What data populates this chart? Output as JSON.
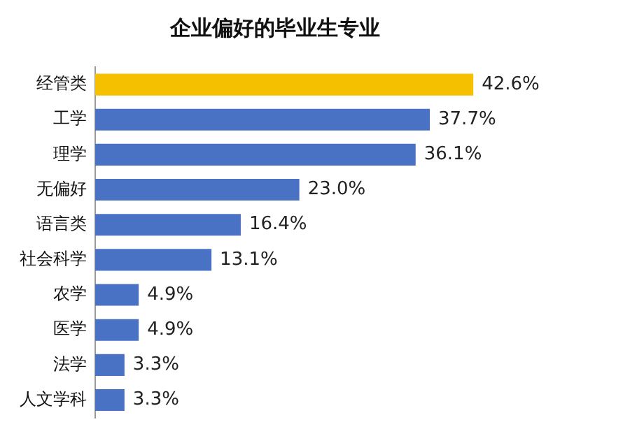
{
  "chart_data": {
    "type": "bar",
    "orientation": "horizontal",
    "title": "企业偏好的毕业生专业",
    "categories": [
      "经管类",
      "工学",
      "理学",
      "无偏好",
      "语言类",
      "社会科学",
      "农学",
      "医学",
      "法学",
      "人文学科"
    ],
    "values": [
      42.6,
      37.7,
      36.1,
      23.0,
      16.4,
      13.1,
      4.9,
      4.9,
      3.3,
      3.3
    ],
    "value_labels": [
      "42.6%",
      "37.7%",
      "36.1%",
      "23.0%",
      "16.4%",
      "13.1%",
      "4.9%",
      "4.9%",
      "3.3%",
      "3.3%"
    ],
    "colors": [
      "#f5c000",
      "#4a72c4",
      "#4a72c4",
      "#4a72c4",
      "#4a72c4",
      "#4a72c4",
      "#4a72c4",
      "#4a72c4",
      "#4a72c4",
      "#4a72c4"
    ],
    "grid": false,
    "legend": false,
    "tick_labels": "y"
  }
}
